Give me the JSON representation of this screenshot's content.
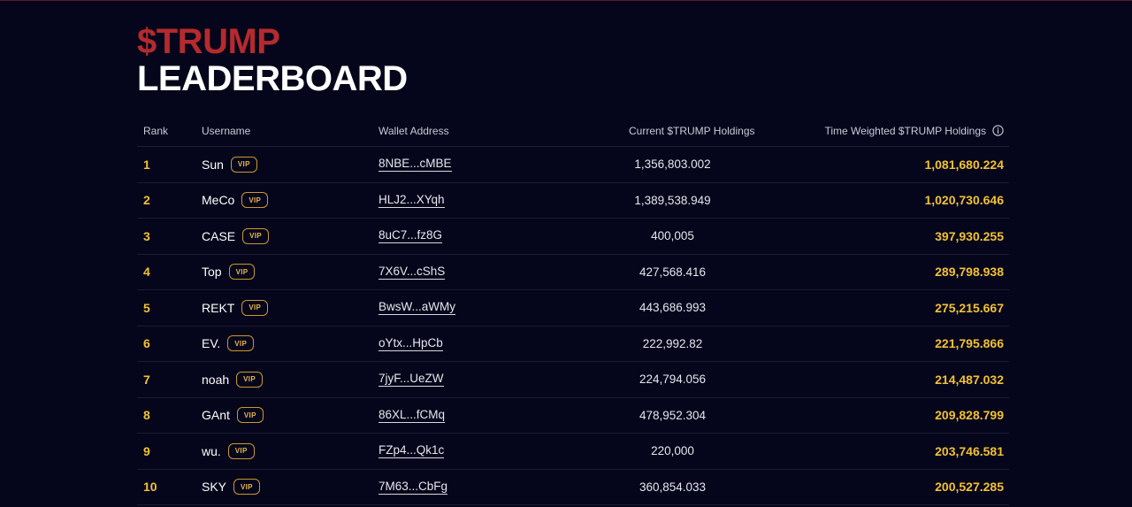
{
  "title": {
    "token": "$TRUMP",
    "main": "LEADERBOARD"
  },
  "table": {
    "headers": {
      "rank": "Rank",
      "username": "Username",
      "wallet": "Wallet Address",
      "current": "Current $TRUMP Holdings",
      "time_weighted": "Time Weighted $TRUMP Holdings"
    },
    "info_icon": "info-circle-icon",
    "vip_label": "VIP",
    "rows": [
      {
        "rank": "1",
        "username": "Sun",
        "vip": "VIP",
        "wallet": "8NBE...cMBE",
        "current": "1,356,803.002",
        "time_weighted": "1,081,680.224"
      },
      {
        "rank": "2",
        "username": "MeCo",
        "vip": "VIP",
        "wallet": "HLJ2...XYqh",
        "current": "1,389,538.949",
        "time_weighted": "1,020,730.646"
      },
      {
        "rank": "3",
        "username": "CASE",
        "vip": "VIP",
        "wallet": "8uC7...fz8G",
        "current": "400,005",
        "time_weighted": "397,930.255"
      },
      {
        "rank": "4",
        "username": "Top",
        "vip": "VIP",
        "wallet": "7X6V...cShS",
        "current": "427,568.416",
        "time_weighted": "289,798.938"
      },
      {
        "rank": "5",
        "username": "REKT",
        "vip": "VIP",
        "wallet": "BwsW...aWMy",
        "current": "443,686.993",
        "time_weighted": "275,215.667"
      },
      {
        "rank": "6",
        "username": "EV.",
        "vip": "VIP",
        "wallet": "oYtx...HpCb",
        "current": "222,992.82",
        "time_weighted": "221,795.866"
      },
      {
        "rank": "7",
        "username": "noah",
        "vip": "VIP",
        "wallet": "7jyF...UeZW",
        "current": "224,794.056",
        "time_weighted": "214,487.032"
      },
      {
        "rank": "8",
        "username": "GAnt",
        "vip": "VIP",
        "wallet": "86XL...fCMq",
        "current": "478,952.304",
        "time_weighted": "209,828.799"
      },
      {
        "rank": "9",
        "username": "wu.",
        "vip": "VIP",
        "wallet": "FZp4...Qk1c",
        "current": "220,000",
        "time_weighted": "203,746.581"
      },
      {
        "rank": "10",
        "username": "SKY",
        "vip": "VIP",
        "wallet": "7M63...CbFg",
        "current": "360,854.033",
        "time_weighted": "200,527.285"
      }
    ]
  },
  "colors": {
    "background": "#05051b",
    "token_red": "#b52a2e",
    "gold": "#f2c230",
    "vip_border": "#c99a2a"
  }
}
